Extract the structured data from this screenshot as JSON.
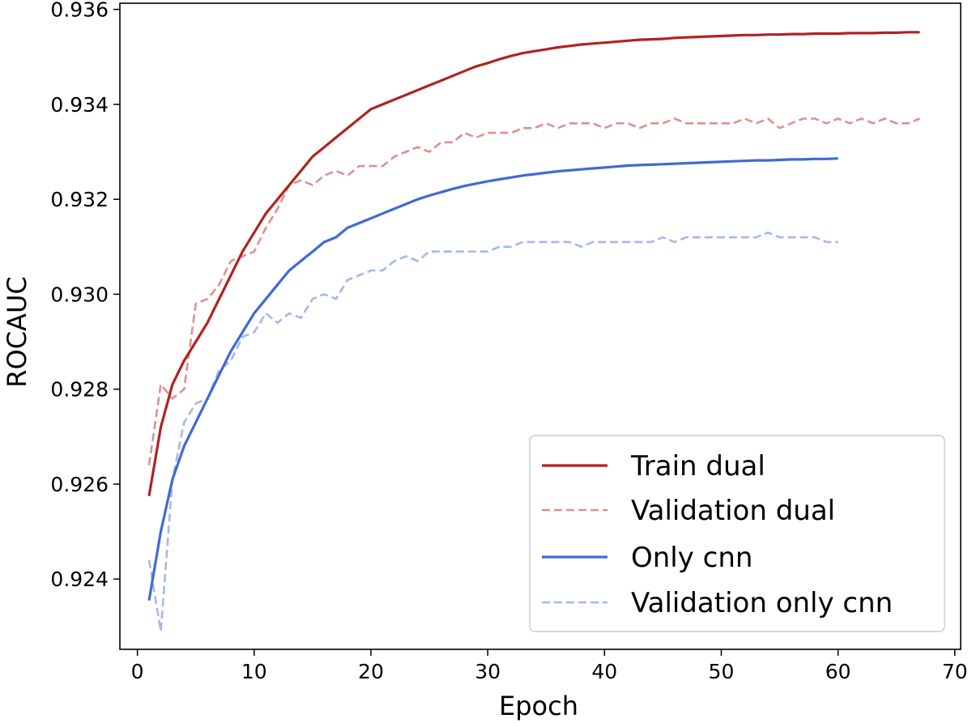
{
  "chart_data": {
    "type": "line",
    "title": "",
    "xlabel": "Epoch",
    "ylabel": "ROCAUC",
    "xlim": [
      -1.5,
      70.5
    ],
    "ylim": [
      0.92252,
      0.93613
    ],
    "xticks": [
      0,
      10,
      20,
      30,
      40,
      50,
      60,
      70
    ],
    "xtick_labels": [
      "0",
      "10",
      "20",
      "30",
      "40",
      "50",
      "60",
      "70"
    ],
    "yticks": [
      0.924,
      0.926,
      0.928,
      0.93,
      0.932,
      0.934,
      0.936
    ],
    "ytick_labels": [
      "0.924",
      "0.926",
      "0.928",
      "0.930",
      "0.932",
      "0.934",
      "0.936"
    ],
    "grid": false,
    "legend_position": "lower-right",
    "series": [
      {
        "name": "Train dual",
        "color": "#b22222",
        "style": "solid",
        "x": [
          1,
          2,
          3,
          4,
          5,
          6,
          7,
          8,
          9,
          10,
          11,
          12,
          13,
          14,
          15,
          16,
          17,
          18,
          19,
          20,
          21,
          22,
          23,
          24,
          25,
          26,
          27,
          28,
          29,
          30,
          31,
          32,
          33,
          34,
          35,
          36,
          37,
          38,
          39,
          40,
          41,
          42,
          43,
          44,
          45,
          46,
          47,
          48,
          49,
          50,
          51,
          52,
          53,
          54,
          55,
          56,
          57,
          58,
          59,
          60,
          61,
          62,
          63,
          64,
          65,
          66,
          67
        ],
        "y": [
          0.92575,
          0.9272,
          0.9281,
          0.9286,
          0.929,
          0.9294,
          0.9299,
          0.9304,
          0.9309,
          0.9313,
          0.9317,
          0.932,
          0.9323,
          0.9326,
          0.9329,
          0.9331,
          0.9333,
          0.9335,
          0.9337,
          0.9339,
          0.934,
          0.9341,
          0.9342,
          0.9343,
          0.9344,
          0.9345,
          0.9346,
          0.9347,
          0.9348,
          0.93487,
          0.93495,
          0.93502,
          0.93508,
          0.93512,
          0.93516,
          0.9352,
          0.93523,
          0.93526,
          0.93528,
          0.9353,
          0.93532,
          0.93534,
          0.93536,
          0.93537,
          0.93538,
          0.9354,
          0.93541,
          0.93542,
          0.93543,
          0.93544,
          0.93545,
          0.93546,
          0.93546,
          0.93547,
          0.93547,
          0.93548,
          0.93548,
          0.93549,
          0.93549,
          0.93549,
          0.9355,
          0.9355,
          0.9355,
          0.93551,
          0.93551,
          0.93552,
          0.93552
        ]
      },
      {
        "name": "Validation dual",
        "color": "#e0908a",
        "style": "dashed",
        "x": [
          1,
          2,
          3,
          4,
          5,
          6,
          7,
          8,
          9,
          10,
          11,
          12,
          13,
          14,
          15,
          16,
          17,
          18,
          19,
          20,
          21,
          22,
          23,
          24,
          25,
          26,
          27,
          28,
          29,
          30,
          31,
          32,
          33,
          34,
          35,
          36,
          37,
          38,
          39,
          40,
          41,
          42,
          43,
          44,
          45,
          46,
          47,
          48,
          49,
          50,
          51,
          52,
          53,
          54,
          55,
          56,
          57,
          58,
          59,
          60,
          61,
          62,
          63,
          64,
          65,
          66,
          67
        ],
        "y": [
          0.9264,
          0.9281,
          0.9278,
          0.928,
          0.9298,
          0.9299,
          0.9302,
          0.9307,
          0.9308,
          0.9309,
          0.9314,
          0.9318,
          0.9323,
          0.9324,
          0.9323,
          0.9325,
          0.9326,
          0.9325,
          0.9327,
          0.9327,
          0.9327,
          0.9329,
          0.933,
          0.9331,
          0.933,
          0.9332,
          0.9332,
          0.9334,
          0.9333,
          0.9334,
          0.9334,
          0.9334,
          0.9335,
          0.9335,
          0.9336,
          0.9335,
          0.9336,
          0.9336,
          0.9336,
          0.9335,
          0.9336,
          0.9336,
          0.9335,
          0.9336,
          0.9336,
          0.9337,
          0.9336,
          0.9336,
          0.9336,
          0.9336,
          0.9336,
          0.9337,
          0.9336,
          0.9337,
          0.9335,
          0.9336,
          0.9337,
          0.9337,
          0.9336,
          0.9337,
          0.9336,
          0.9337,
          0.9336,
          0.9337,
          0.9336,
          0.9336,
          0.9337
        ]
      },
      {
        "name": "Only cnn",
        "color": "#4169d6",
        "style": "solid",
        "x": [
          1,
          2,
          3,
          4,
          5,
          6,
          7,
          8,
          9,
          10,
          11,
          12,
          13,
          14,
          15,
          16,
          17,
          18,
          19,
          20,
          21,
          22,
          23,
          24,
          25,
          26,
          27,
          28,
          29,
          30,
          31,
          32,
          33,
          34,
          35,
          36,
          37,
          38,
          39,
          40,
          41,
          42,
          43,
          44,
          45,
          46,
          47,
          48,
          49,
          50,
          51,
          52,
          53,
          54,
          55,
          56,
          57,
          58,
          59,
          60
        ],
        "y": [
          0.92355,
          0.925,
          0.9261,
          0.9268,
          0.9273,
          0.9278,
          0.9283,
          0.9288,
          0.9292,
          0.9296,
          0.9299,
          0.9302,
          0.9305,
          0.9307,
          0.9309,
          0.9311,
          0.9312,
          0.9314,
          0.9315,
          0.9316,
          0.9317,
          0.9318,
          0.9319,
          0.932,
          0.93208,
          0.93215,
          0.93222,
          0.93228,
          0.93233,
          0.93238,
          0.93242,
          0.93246,
          0.9325,
          0.93253,
          0.93256,
          0.93259,
          0.93261,
          0.93263,
          0.93265,
          0.93267,
          0.93269,
          0.93271,
          0.93272,
          0.93273,
          0.93274,
          0.93275,
          0.93276,
          0.93277,
          0.93278,
          0.93279,
          0.9328,
          0.93281,
          0.93282,
          0.93282,
          0.93283,
          0.93284,
          0.93284,
          0.93285,
          0.93285,
          0.93286
        ]
      },
      {
        "name": "Validation only cnn",
        "color": "#a4b8ec",
        "style": "dashed",
        "x": [
          1,
          2,
          3,
          4,
          5,
          6,
          7,
          8,
          9,
          10,
          11,
          12,
          13,
          14,
          15,
          16,
          17,
          18,
          19,
          20,
          21,
          22,
          23,
          24,
          25,
          26,
          27,
          28,
          29,
          30,
          31,
          32,
          33,
          34,
          35,
          36,
          37,
          38,
          39,
          40,
          41,
          42,
          43,
          44,
          45,
          46,
          47,
          48,
          49,
          50,
          51,
          52,
          53,
          54,
          55,
          56,
          57,
          58,
          59,
          60
        ],
        "y": [
          0.9244,
          0.9229,
          0.9261,
          0.9273,
          0.9277,
          0.9278,
          0.9284,
          0.9286,
          0.9291,
          0.9292,
          0.9296,
          0.9294,
          0.9296,
          0.9295,
          0.9299,
          0.93,
          0.9299,
          0.9303,
          0.9304,
          0.9305,
          0.9305,
          0.9307,
          0.9308,
          0.9307,
          0.9309,
          0.9309,
          0.9309,
          0.9309,
          0.9309,
          0.9309,
          0.931,
          0.931,
          0.9311,
          0.9311,
          0.9311,
          0.9311,
          0.9311,
          0.931,
          0.9311,
          0.9311,
          0.9311,
          0.9311,
          0.9311,
          0.9311,
          0.9312,
          0.9311,
          0.9312,
          0.9312,
          0.9312,
          0.9312,
          0.9312,
          0.9312,
          0.9312,
          0.9313,
          0.9312,
          0.9312,
          0.9312,
          0.9312,
          0.9311,
          0.9311
        ]
      }
    ]
  }
}
